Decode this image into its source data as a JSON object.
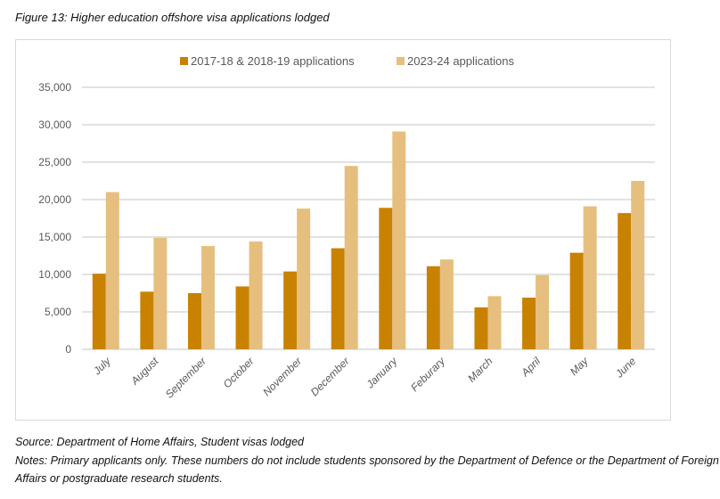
{
  "figure": {
    "title": "Figure 13: Higher education offshore visa applications lodged",
    "source": "Source: Department of Home Affairs, Student visas lodged",
    "notes": "Notes: Primary applicants only. These numbers do not include students sponsored by the Department of Defence or the Department of Foreign Affairs or postgraduate research students."
  },
  "chart_data": {
    "type": "bar",
    "title": "Higher education offshore visa applications lodged",
    "xlabel": "",
    "ylabel": "",
    "ylim": [
      0,
      35000
    ],
    "yticks": [
      0,
      5000,
      10000,
      15000,
      20000,
      25000,
      30000,
      35000
    ],
    "ytick_labels": [
      "0",
      "5,000",
      "10,000",
      "15,000",
      "20,000",
      "25,000",
      "30,000",
      "35,000"
    ],
    "grid": true,
    "legend_position": "top-center",
    "categories": [
      "July",
      "August",
      "September",
      "October",
      "November",
      "December",
      "January",
      "Feburary",
      "March",
      "April",
      "May",
      "June"
    ],
    "series": [
      {
        "name": "2017-18 & 2018-19 applications",
        "color": "#C98200",
        "values": [
          10100,
          7700,
          7500,
          8400,
          10400,
          13500,
          18900,
          11100,
          5600,
          6900,
          12900,
          18200
        ]
      },
      {
        "name": "2023-24 applications",
        "color": "#E6BF7E",
        "values": [
          21000,
          14900,
          13800,
          14400,
          18800,
          24500,
          29100,
          12000,
          7100,
          9900,
          19100,
          22500
        ]
      }
    ]
  }
}
